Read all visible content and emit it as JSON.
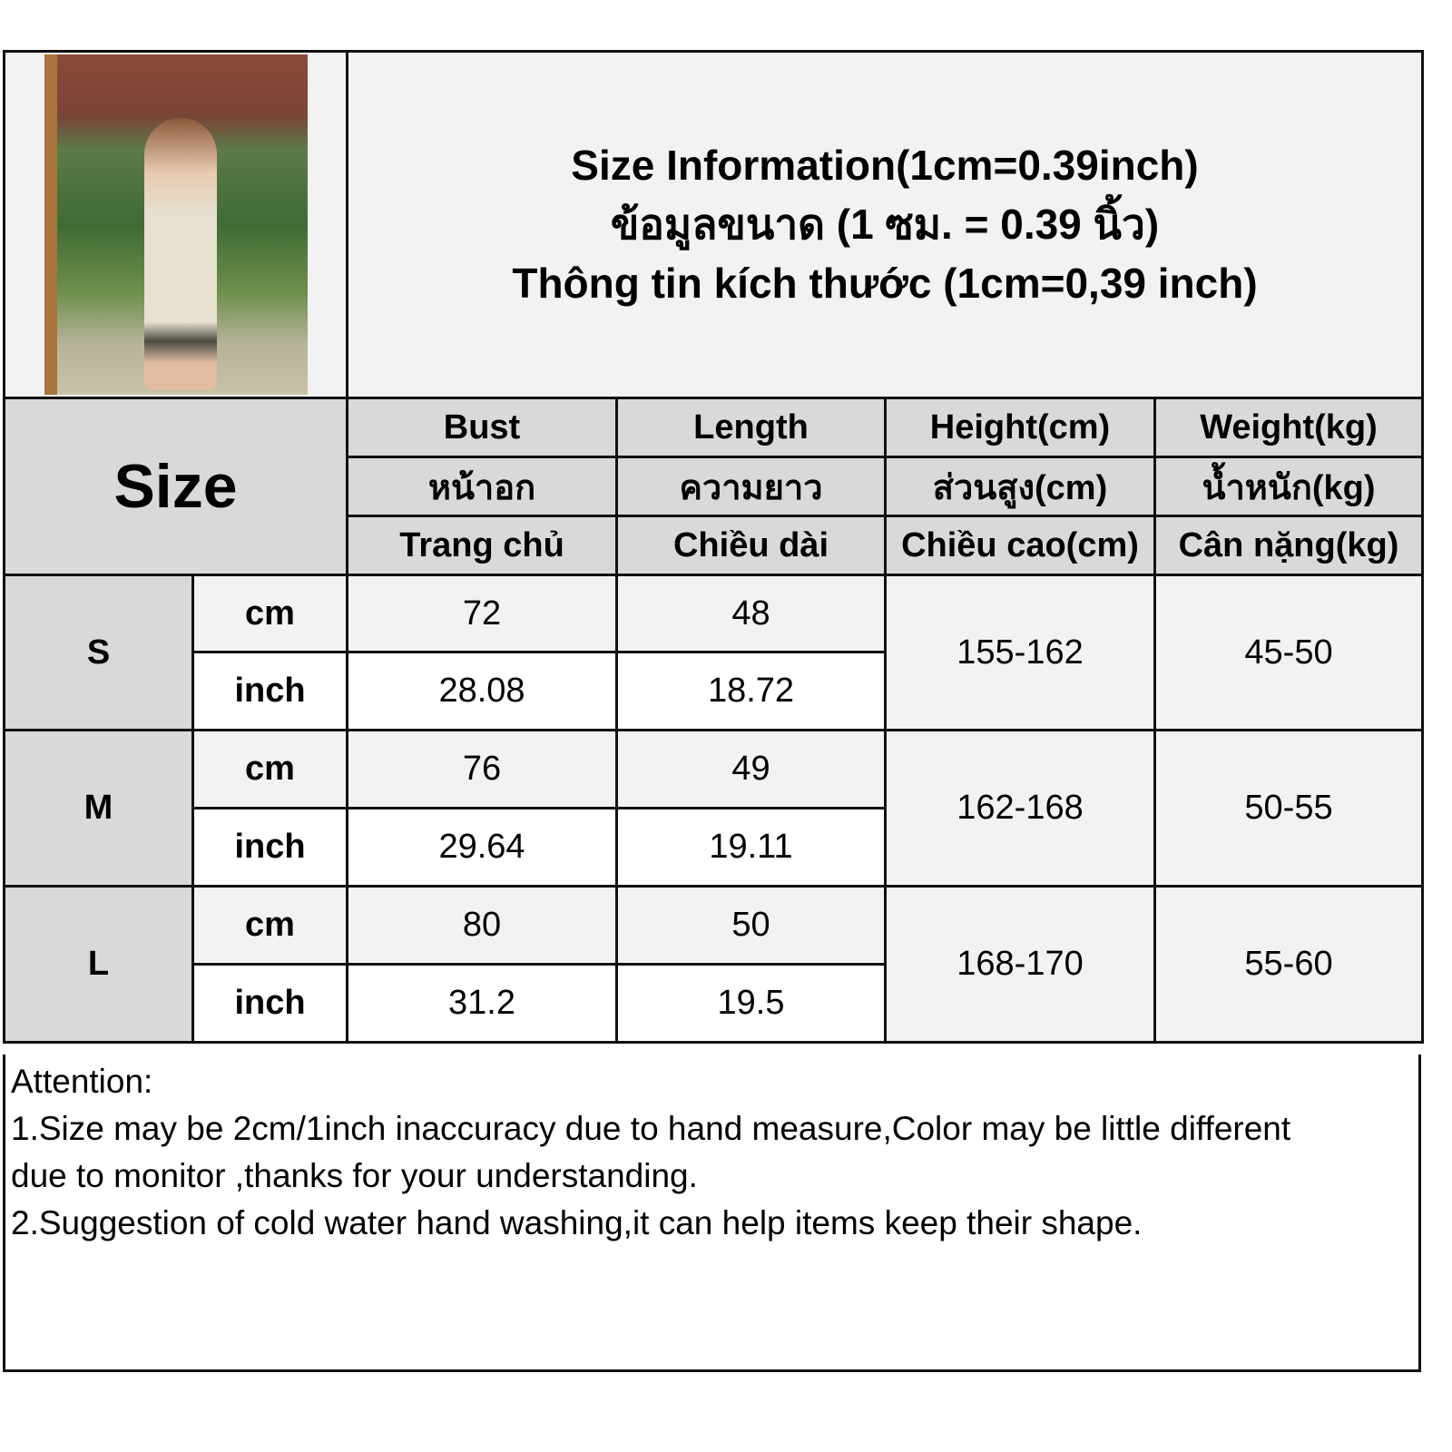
{
  "title": {
    "en": "Size Information(1cm=0.39inch)",
    "th": "ข้อมูลขนาด (1 ซม. = 0.39 นิ้ว)",
    "vi": "Thông tin kích thước (1cm=0,39 inch)"
  },
  "header": {
    "size_label": "Size",
    "columns": [
      {
        "en": "Bust",
        "th": "หน้าอก",
        "vi": "Trang chủ"
      },
      {
        "en": "Length",
        "th": "ความยาว",
        "vi": "Chiều dài"
      },
      {
        "en": "Height(cm)",
        "th": "ส่วนสูง(cm)",
        "vi": "Chiều cao(cm)"
      },
      {
        "en": "Weight(kg)",
        "th": "น้ำหนัก(kg)",
        "vi": "Cân nặng(kg)"
      }
    ]
  },
  "sizes": [
    {
      "size": "S",
      "cm_label": "cm",
      "inch_label": "inch",
      "bust_cm": "72",
      "length_cm": "48",
      "bust_inch": "28.08",
      "length_inch": "18.72",
      "height": "155-162",
      "weight": "45-50"
    },
    {
      "size": "M",
      "cm_label": "cm",
      "inch_label": "inch",
      "bust_cm": "76",
      "length_cm": "49",
      "bust_inch": "29.64",
      "length_inch": "19.11",
      "height": "162-168",
      "weight": "50-55"
    },
    {
      "size": "L",
      "cm_label": "cm",
      "inch_label": "inch",
      "bust_cm": "80",
      "length_cm": "50",
      "bust_inch": "31.2",
      "length_inch": "19.5",
      "height": "168-170",
      "weight": "55-60"
    }
  ],
  "attention": {
    "heading": "Attention:",
    "lines": [
      "1.Size may be 2cm/1inch inaccuracy due to hand measure,Color may be little different",
      "due to monitor ,thanks for your understanding.",
      "2.Suggestion of cold water hand washing,it can help items keep their shape."
    ]
  }
}
